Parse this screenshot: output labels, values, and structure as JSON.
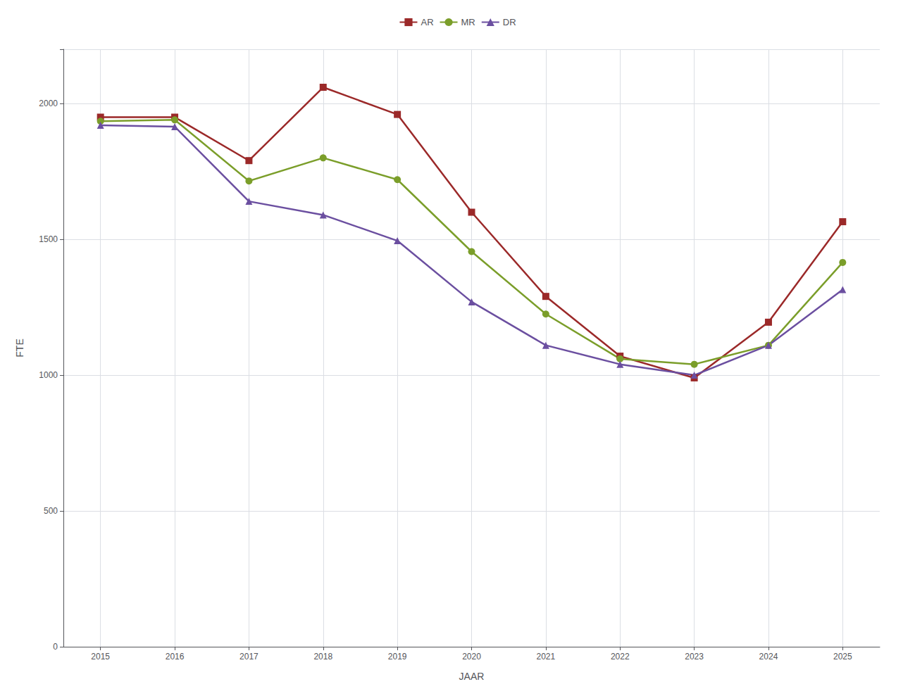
{
  "chart_data": {
    "type": "line",
    "x": [
      2015,
      2016,
      2017,
      2018,
      2019,
      2020,
      2021,
      2022,
      2023,
      2024,
      2025
    ],
    "series": [
      {
        "name": "AR",
        "color": "#9B2929",
        "marker": "square",
        "values": [
          1950,
          1950,
          1790,
          2060,
          1960,
          1600,
          1290,
          1070,
          990,
          1195,
          1565
        ]
      },
      {
        "name": "MR",
        "color": "#7B9E2A",
        "marker": "circle",
        "values": [
          1935,
          1940,
          1715,
          1800,
          1720,
          1455,
          1225,
          1060,
          1040,
          1110,
          1415
        ]
      },
      {
        "name": "DR",
        "color": "#6B4FA0",
        "marker": "triangle",
        "values": [
          1920,
          1915,
          1640,
          1590,
          1495,
          1270,
          1110,
          1040,
          1000,
          1110,
          1315
        ]
      }
    ],
    "xlabel": "JAAR",
    "ylabel": "FTE",
    "xlim": [
      2014.5,
      2025.5
    ],
    "xticks": [
      2015,
      2016,
      2017,
      2018,
      2019,
      2020,
      2021,
      2022,
      2023,
      2024,
      2025
    ],
    "ylim": [
      0,
      2200
    ],
    "yticks": [
      0,
      500,
      1000,
      1500,
      2000
    ],
    "grid": true,
    "legend": "top"
  }
}
